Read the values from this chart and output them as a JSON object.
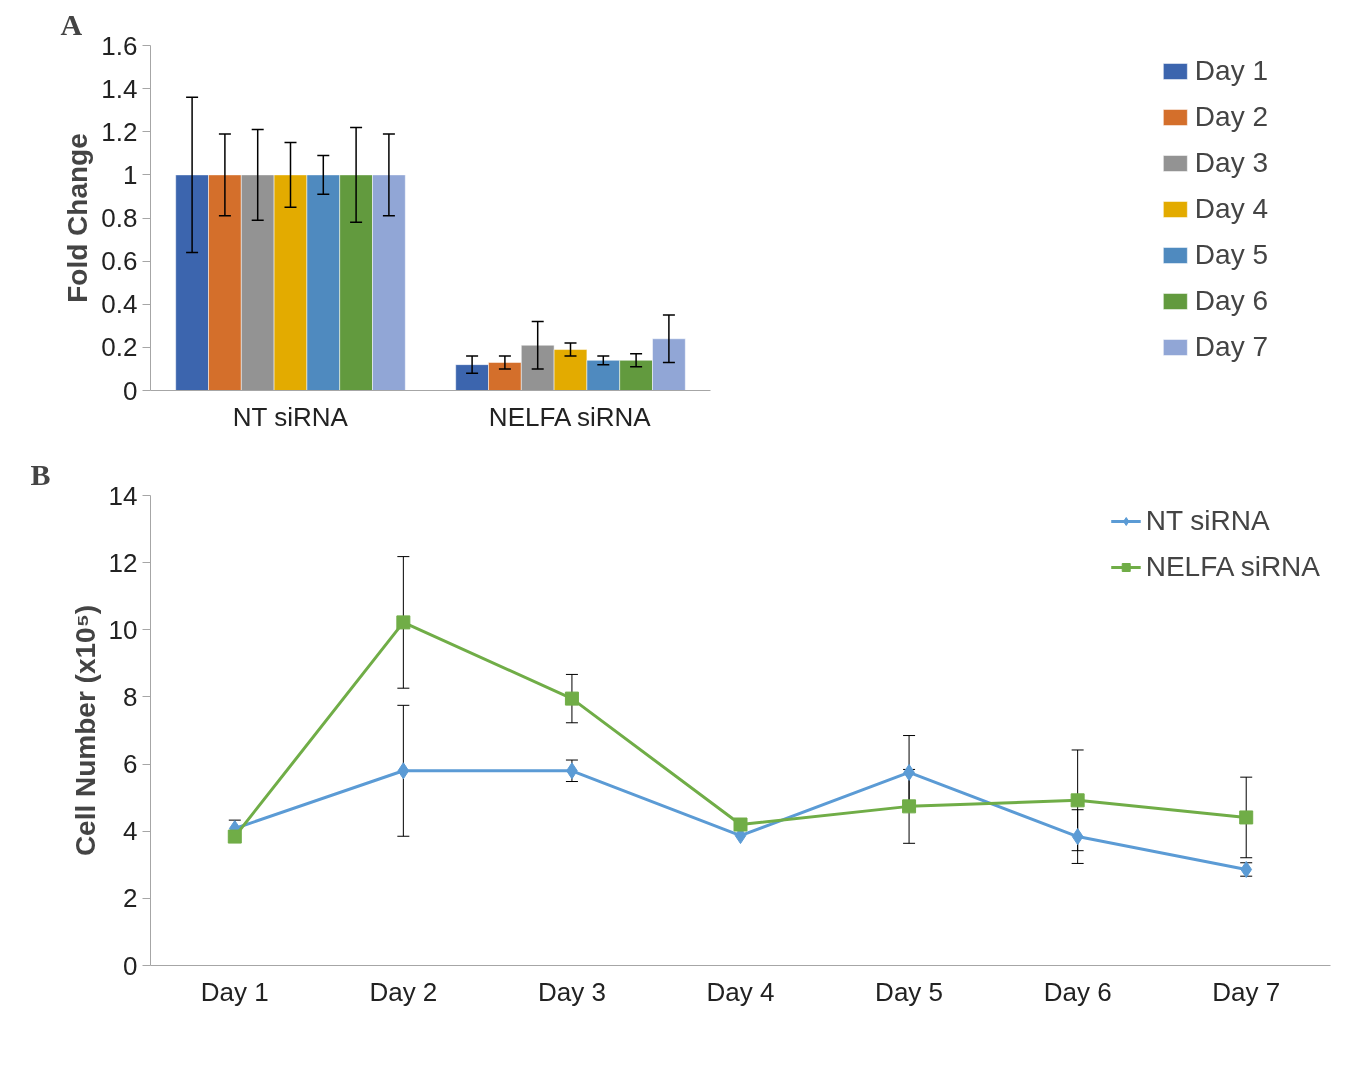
{
  "chart_data": [
    {
      "type": "bar",
      "title": "A",
      "ylabel": "Fold Change",
      "categories": [
        "NT siRNA",
        "NELFA siRNA"
      ],
      "ylim": [
        0,
        1.6
      ],
      "yticks": [
        0,
        0.2,
        0.4,
        0.6,
        0.8,
        1,
        1.2,
        1.4,
        1.6
      ],
      "grid": false,
      "legend": "right",
      "series": [
        {
          "name": "Day 1",
          "color": "#3c65ae",
          "values": [
            1,
            0.12
          ],
          "errors": [
            0.36,
            0.04
          ]
        },
        {
          "name": "Day 2",
          "color": "#d46f2b",
          "values": [
            1,
            0.13
          ],
          "errors": [
            0.19,
            0.03
          ]
        },
        {
          "name": "Day 3",
          "color": "#939393",
          "values": [
            1,
            0.21
          ],
          "errors": [
            0.21,
            0.11
          ]
        },
        {
          "name": "Day 4",
          "color": "#e3ab00",
          "values": [
            1,
            0.19
          ],
          "errors": [
            0.15,
            0.03
          ]
        },
        {
          "name": "Day 5",
          "color": "#4f8abf",
          "values": [
            1,
            0.14
          ],
          "errors": [
            0.09,
            0.02
          ]
        },
        {
          "name": "Day 6",
          "color": "#629a3e",
          "values": [
            1,
            0.14
          ],
          "errors": [
            0.22,
            0.03
          ]
        },
        {
          "name": "Day 7",
          "color": "#91a6d6",
          "values": [
            1,
            0.24
          ],
          "errors": [
            0.19,
            0.11
          ]
        }
      ]
    },
    {
      "type": "line",
      "title": "B",
      "ylabel": "Cell Number (x10⁵)",
      "categories": [
        "Day 1",
        "Day 2",
        "Day 3",
        "Day 4",
        "Day 5",
        "Day 6",
        "Day 7"
      ],
      "ylim": [
        0,
        14
      ],
      "yticks": [
        0,
        2,
        4,
        6,
        8,
        10,
        12,
        14
      ],
      "grid": false,
      "legend": "top right",
      "line_style": "solid",
      "series": [
        {
          "name": "NT siRNA",
          "color": "#5b9bd5",
          "marker": "diamond",
          "values": [
            4.08,
            5.8,
            5.8,
            3.87,
            5.75,
            3.84,
            2.86
          ],
          "errors": [
            0.25,
            1.95,
            0.32,
            null,
            1.1,
            0.8,
            0.2
          ]
        },
        {
          "name": "NELFA siRNA",
          "color": "#70ad47",
          "marker": "square",
          "values": [
            3.84,
            10.22,
            7.95,
            4.2,
            4.74,
            4.92,
            4.41
          ],
          "errors": [
            null,
            1.96,
            0.72,
            null,
            1.1,
            1.5,
            1.2
          ]
        }
      ]
    }
  ]
}
